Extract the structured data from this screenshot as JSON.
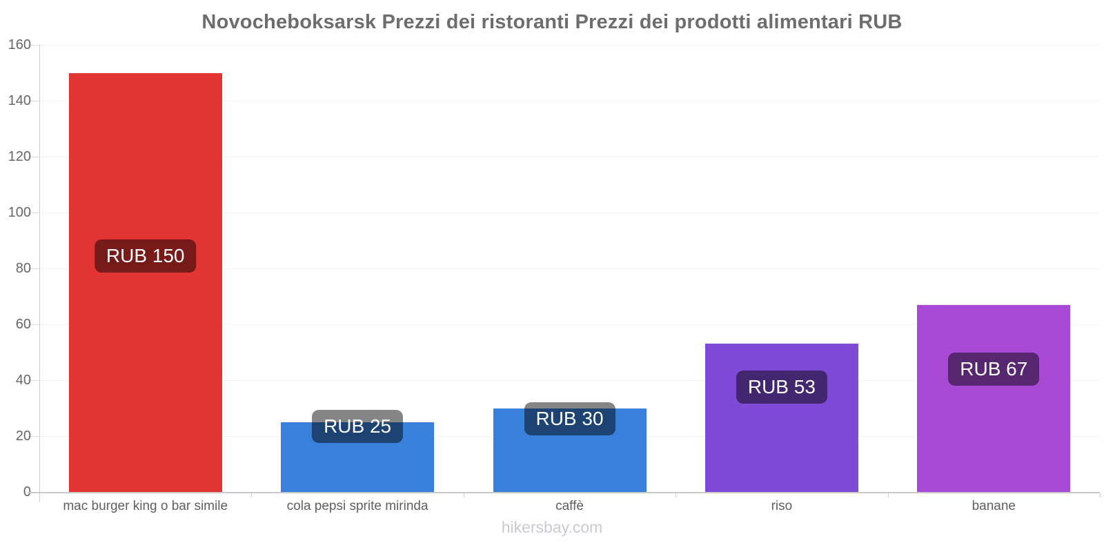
{
  "footer": "hikersbay.com",
  "chart_data": {
    "type": "bar",
    "title": "Novocheboksarsk Prezzi dei ristoranti Prezzi dei prodotti alimentari RUB",
    "currency": "RUB",
    "categories": [
      "mac burger king o bar simile",
      "cola pepsi sprite mirinda",
      "caffè",
      "riso",
      "banane"
    ],
    "values": [
      150,
      25,
      30,
      53,
      67
    ],
    "value_labels": [
      "RUB 150",
      "RUB 25",
      "RUB 30",
      "RUB 53",
      "RUB 67"
    ],
    "bar_colors": [
      "#e23432",
      "#3880db",
      "#3880db",
      "#7f4ad6",
      "#a84ad6"
    ],
    "value_badge_color": "rgba(0,0,0,0.48)",
    "value_badge_text_color": "#ffffff",
    "ylabel": "",
    "xlabel": "",
    "ylim": [
      0,
      160
    ],
    "yticks": [
      0,
      20,
      40,
      60,
      80,
      100,
      120,
      140,
      160
    ],
    "grid": true,
    "legend": "none"
  }
}
